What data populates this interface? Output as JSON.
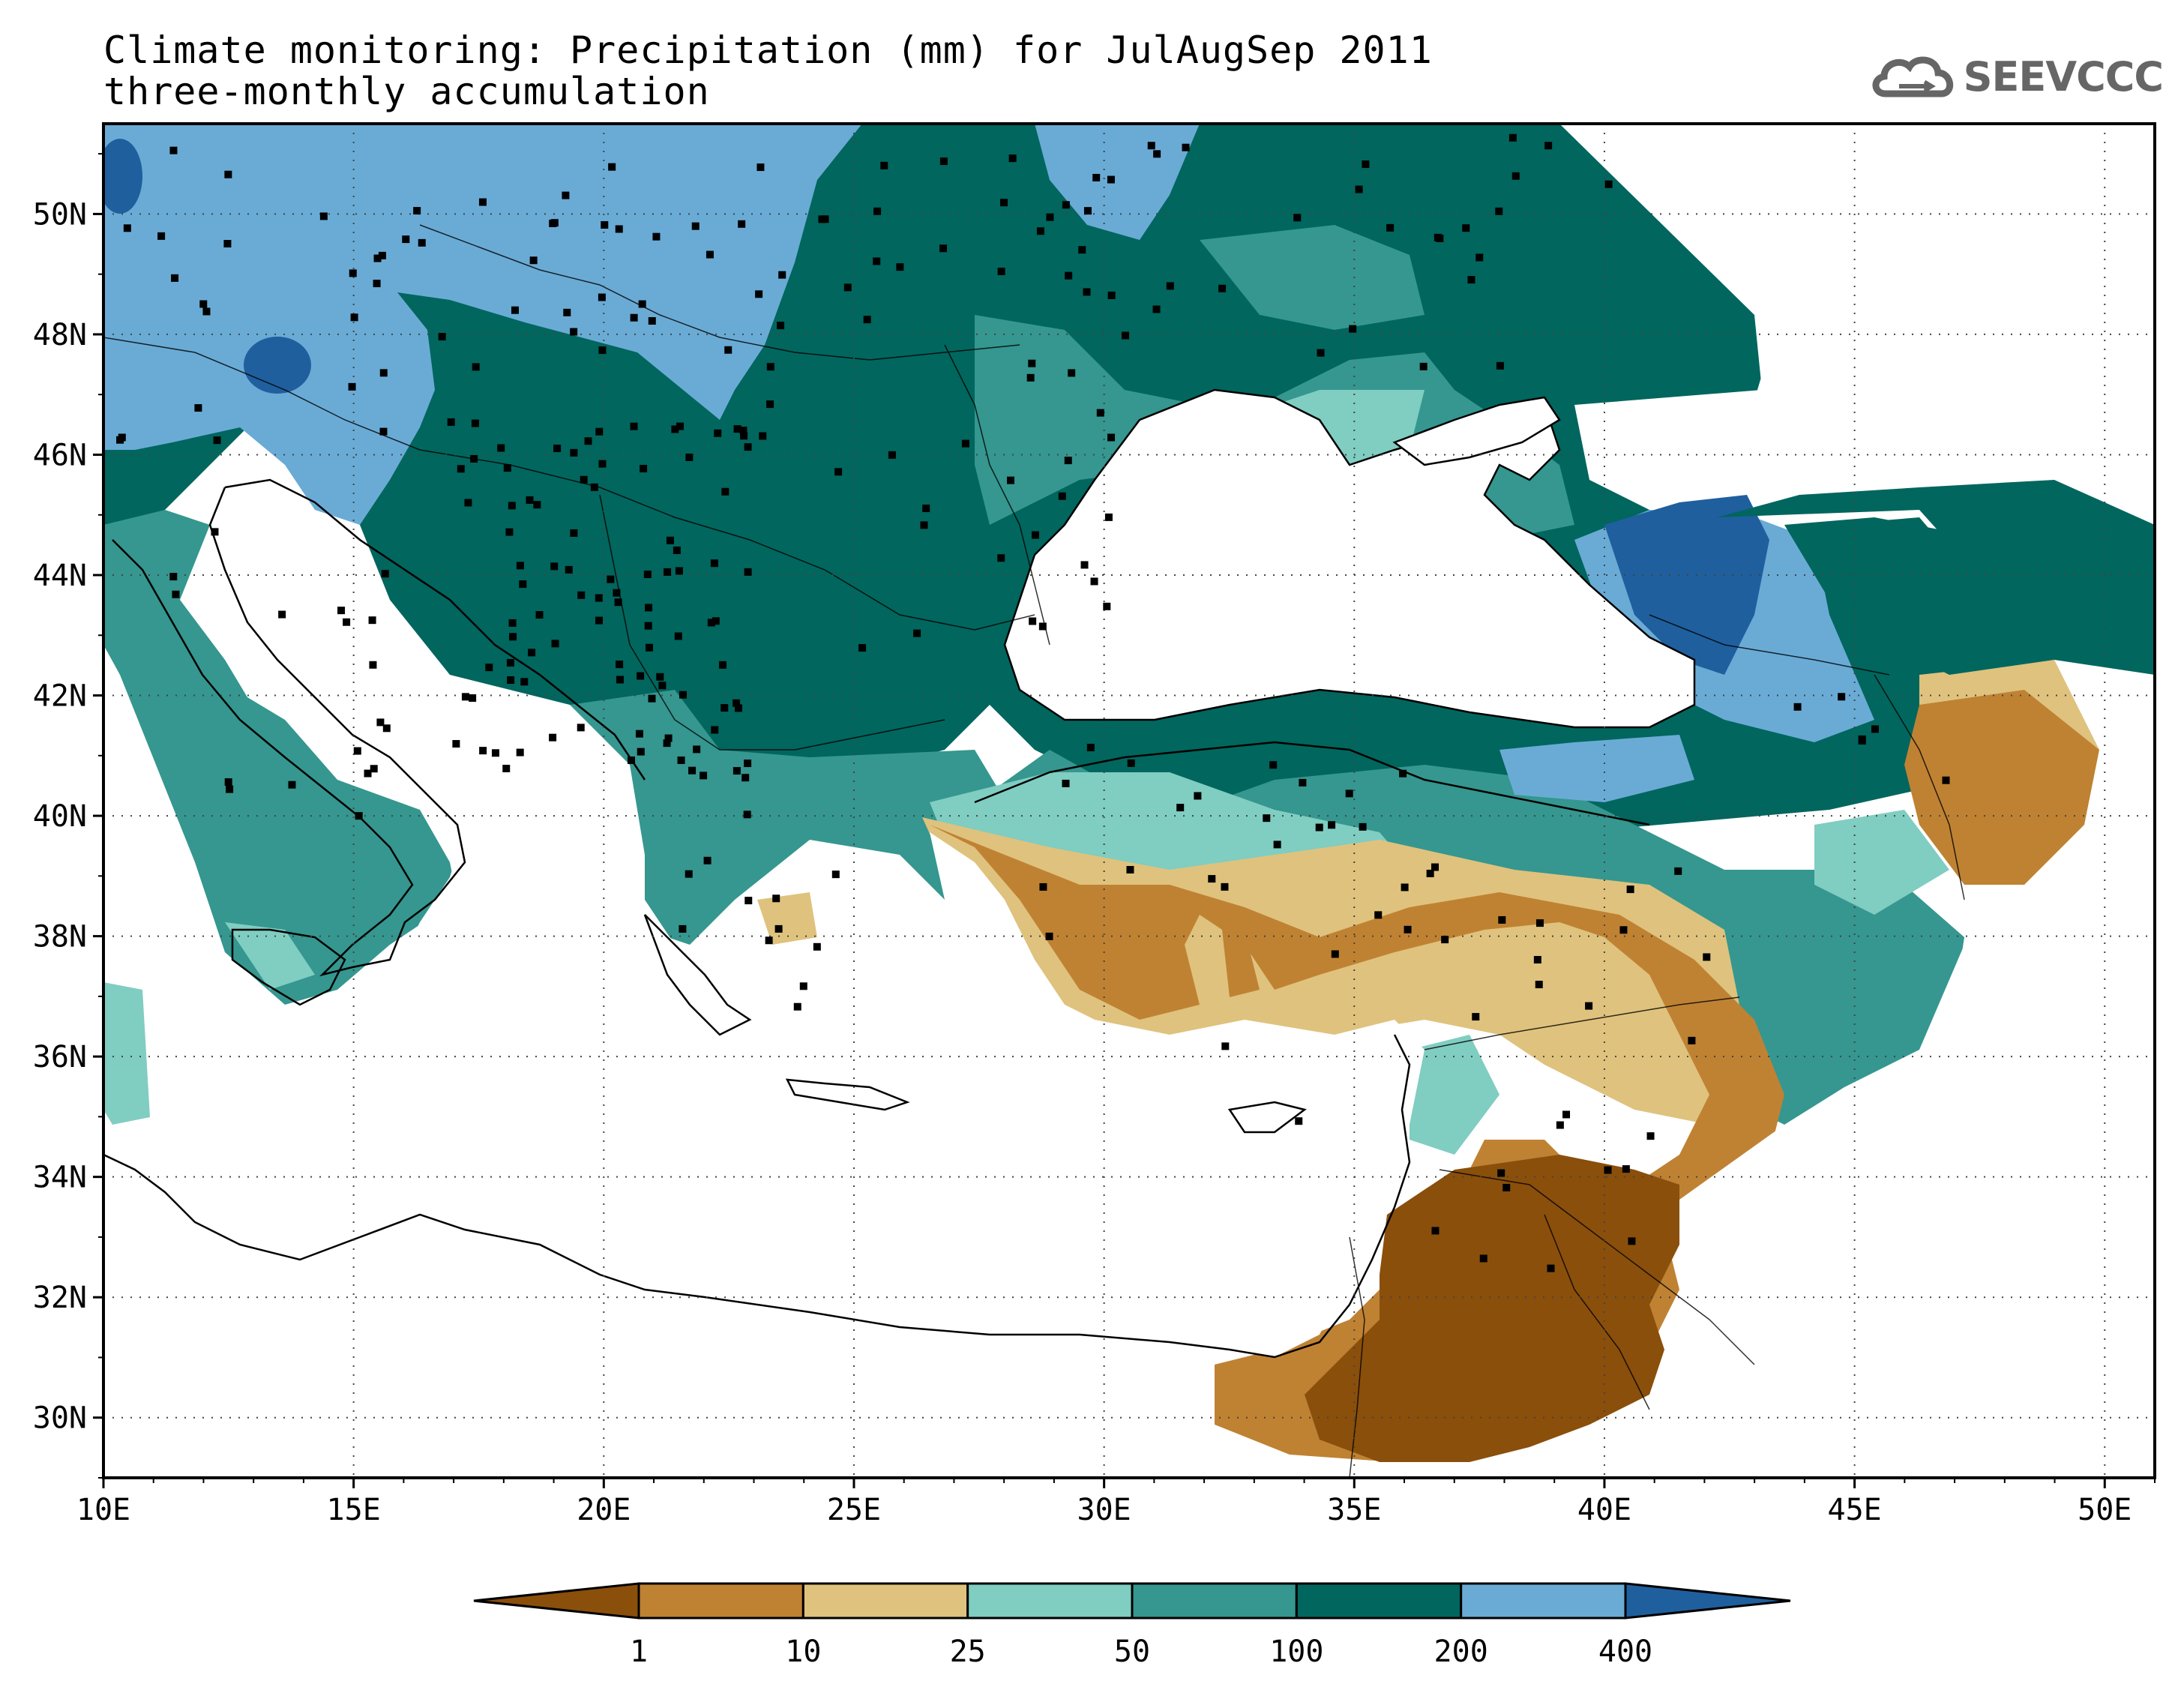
{
  "header": {
    "title_line1": "Climate monitoring: Precipitation (mm) for JulAugSep 2011",
    "title_line2": "three-monthly accumulation"
  },
  "logo": {
    "text": "SEEVCCC",
    "icon": "cloud-icon"
  },
  "map": {
    "lon_range": [
      10,
      51
    ],
    "lat_range": [
      29,
      51.5
    ],
    "x_ticks": [
      "10E",
      "15E",
      "20E",
      "25E",
      "30E",
      "35E",
      "40E",
      "45E",
      "50E"
    ],
    "y_ticks": [
      "30N",
      "32N",
      "34N",
      "36N",
      "38N",
      "40N",
      "42N",
      "44N",
      "46N",
      "48N",
      "50N"
    ],
    "grid": "dotted",
    "stations": "black square markers"
  },
  "legend": {
    "thresholds": [
      "1",
      "10",
      "25",
      "50",
      "100",
      "200",
      "400"
    ],
    "colors": [
      "#8a4f0b",
      "#bf8233",
      "#dfc27d",
      "#80cdc1",
      "#35978f",
      "#01665e",
      "#6aabd6",
      "#1f5f9e"
    ]
  }
}
